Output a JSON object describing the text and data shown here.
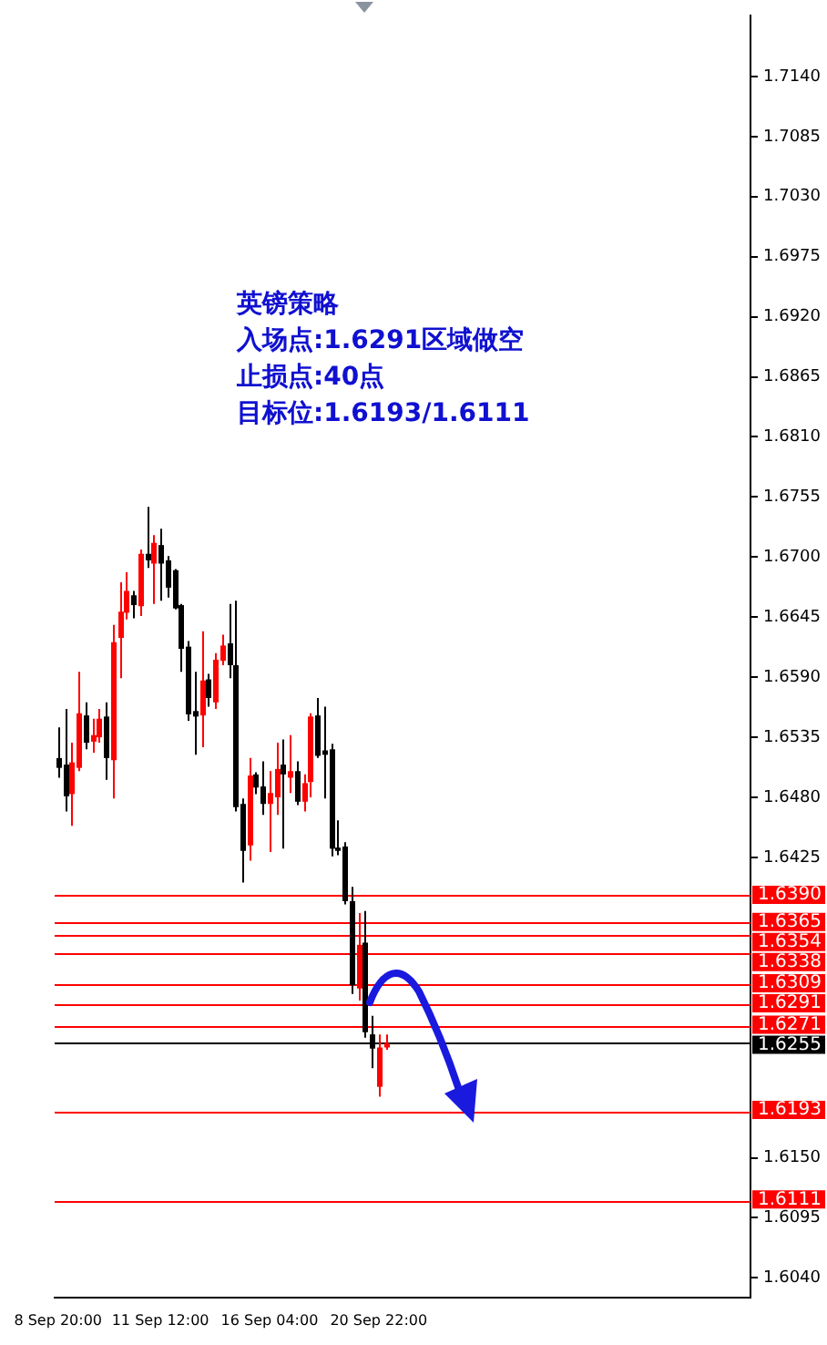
{
  "chart_data": {
    "type": "candlestick",
    "categories": [
      "8 Sep 20:00",
      null,
      null,
      null,
      null,
      null,
      null,
      null,
      null,
      null,
      null,
      null,
      null,
      null,
      null,
      "11 Sep 12:00",
      null,
      null,
      null,
      null,
      null,
      null,
      null,
      null,
      null,
      null,
      null,
      null,
      null,
      null,
      null,
      "16 Sep 04:00",
      null,
      null,
      null,
      null,
      null,
      null,
      null,
      null,
      null,
      null,
      null,
      null,
      null,
      null,
      null,
      "20 Sep 22:00",
      null,
      null,
      null,
      null,
      null,
      null,
      null,
      null,
      null,
      null,
      null,
      null,
      null,
      null,
      null,
      null,
      null,
      null,
      null,
      null,
      null,
      null,
      null,
      null,
      null,
      null,
      null,
      null,
      null,
      null,
      null,
      null,
      null,
      null,
      null,
      null,
      null,
      null,
      null,
      null,
      null,
      null,
      null,
      null,
      null,
      null,
      null,
      null,
      null,
      null,
      null,
      null,
      null,
      null
    ],
    "ohlc": [
      [
        1.6516,
        1.6544,
        1.6498,
        1.6507
      ],
      [
        1.651,
        1.6561,
        1.6467,
        1.6481
      ],
      [
        1.6483,
        1.653,
        1.6454,
        1.6512
      ],
      [
        1.6507,
        1.6595,
        1.6504,
        1.6557
      ],
      [
        1.6555,
        1.6567,
        1.6524,
        1.653
      ],
      [
        1.6531,
        1.6552,
        1.6521,
        1.6537
      ],
      [
        1.6535,
        1.6561,
        1.653,
        1.6552
      ],
      [
        1.6554,
        1.6567,
        1.6496,
        1.6516
      ],
      [
        1.6514,
        1.6638,
        1.6479,
        1.6622
      ],
      [
        1.6626,
        1.6677,
        1.6589,
        1.665
      ],
      [
        1.6649,
        1.6686,
        1.6643,
        1.6669
      ],
      [
        1.6665,
        1.6669,
        1.6644,
        1.6656
      ],
      [
        1.6655,
        1.6707,
        1.6646,
        1.6703
      ],
      [
        1.6703,
        1.6746,
        1.669,
        1.6697
      ],
      [
        1.6694,
        1.672,
        1.6657,
        1.6713
      ],
      [
        1.6711,
        1.6726,
        1.666,
        1.6694
      ],
      [
        1.6697,
        1.6701,
        1.6663,
        1.6672
      ],
      [
        1.6688,
        1.6689,
        1.6652,
        1.6653
      ],
      [
        1.6656,
        1.6657,
        1.6595,
        1.6616
      ],
      [
        1.6618,
        1.6623,
        1.655,
        1.6556
      ],
      [
        1.6559,
        1.6595,
        1.6519,
        1.6554
      ],
      [
        1.6555,
        1.6632,
        1.6526,
        1.6587
      ],
      [
        1.6588,
        1.6593,
        1.6563,
        1.6571
      ],
      [
        1.6567,
        1.6612,
        1.6561,
        1.6606
      ],
      [
        1.6605,
        1.6629,
        1.6601,
        1.6619
      ],
      [
        1.6621,
        1.6657,
        1.6589,
        1.6601
      ],
      [
        1.6601,
        1.666,
        1.6467,
        1.6471
      ],
      [
        1.6474,
        1.6479,
        1.6402,
        1.6431
      ],
      [
        1.6436,
        1.6516,
        1.6422,
        1.65
      ],
      [
        1.6501,
        1.6503,
        1.6483,
        1.6489
      ],
      [
        1.649,
        1.6513,
        1.6464,
        1.6474
      ],
      [
        1.6474,
        1.6504,
        1.643,
        1.6484
      ],
      [
        1.648,
        1.653,
        1.6464,
        1.6506
      ],
      [
        1.651,
        1.6533,
        1.6433,
        1.6501
      ],
      [
        1.6498,
        1.6537,
        1.6484,
        1.6504
      ],
      [
        1.6504,
        1.6513,
        1.6473,
        1.6476
      ],
      [
        1.6476,
        1.6501,
        1.6467,
        1.6493
      ],
      [
        1.6494,
        1.6557,
        1.648,
        1.6554
      ],
      [
        1.6555,
        1.6571,
        1.6516,
        1.6518
      ],
      [
        1.6523,
        1.6563,
        1.6479,
        1.6519
      ],
      [
        1.6524,
        1.6529,
        1.6426,
        1.6433
      ],
      [
        1.6434,
        1.6459,
        1.6427,
        1.6431
      ],
      [
        1.6435,
        1.6439,
        1.6382,
        1.6385
      ],
      [
        1.6385,
        1.6398,
        1.63,
        1.6308
      ],
      [
        1.6305,
        1.6374,
        1.6294,
        1.6345
      ],
      [
        1.6347,
        1.6376,
        1.626,
        1.6265
      ],
      [
        1.6263,
        1.628,
        1.6232,
        1.625
      ],
      [
        1.6215,
        1.6263,
        1.6206,
        1.6251
      ],
      [
        1.6251,
        1.6263,
        1.6249,
        1.6255
      ],
      null,
      null,
      null,
      null,
      null,
      null,
      null,
      null,
      null,
      null,
      null,
      null,
      null,
      null,
      null,
      null,
      null,
      null,
      null,
      null,
      null,
      null,
      null,
      null,
      null,
      null,
      null,
      null,
      null,
      null,
      null,
      null,
      null,
      null,
      null,
      null,
      null,
      null,
      null,
      null,
      null,
      null,
      null,
      null,
      null,
      null,
      null,
      null,
      null,
      null,
      null,
      null,
      null
    ],
    "ylim": [
      1.6022,
      1.7196
    ],
    "yticks": [
      {
        "value": 1.604,
        "label": "1.6040"
      },
      1.6095,
      {
        "value": 1.615,
        "label": "1.6150"
      },
      1.6425,
      {
        "value": 1.648,
        "label": "1.6480"
      },
      1.6535,
      {
        "value": 1.659,
        "label": "1.6590"
      },
      1.6645,
      {
        "value": 1.67,
        "label": "1.6700"
      },
      1.6755,
      {
        "value": 1.681,
        "label": "1.6810"
      },
      1.6865,
      {
        "value": 1.692,
        "label": "1.6920"
      },
      1.6975,
      {
        "value": 1.703,
        "label": "1.7030"
      },
      1.7085,
      {
        "value": 1.714,
        "label": "1.7140"
      }
    ],
    "grid": false,
    "legend": false,
    "ref_lines": [
      {
        "axis": "y",
        "value": 1.639,
        "label": "1.6390",
        "color": "#ff0000"
      },
      {
        "axis": "y",
        "value": 1.6365,
        "label": "1.6365",
        "color": "#ff0000"
      },
      {
        "axis": "y",
        "value": 1.6354,
        "label": "1.6354",
        "color": "#ff0000"
      },
      {
        "axis": "y",
        "value": 1.6338,
        "label": "1.6338",
        "color": "#ff0000"
      },
      {
        "axis": "y",
        "value": 1.6309,
        "label": "1.6309",
        "color": "#ff0000"
      },
      {
        "axis": "y",
        "value": 1.6291,
        "label": "1.6291",
        "color": "#ff0000"
      },
      {
        "axis": "y",
        "value": 1.6271,
        "label": "1.6271",
        "color": "#ff0000"
      },
      {
        "axis": "y",
        "value": 1.6255,
        "label": "1.6255",
        "color": "#000000"
      },
      {
        "axis": "y",
        "value": 1.6193,
        "label": "1.6193",
        "color": "#ff0000"
      },
      {
        "axis": "y",
        "value": 1.6111,
        "label": "1.6111",
        "color": "#ff0000"
      }
    ],
    "annotations": [
      "英镑策略",
      "入场点:1.6291区域做空",
      "止损点:40点",
      "目标位:1.6193/1.6111"
    ]
  }
}
